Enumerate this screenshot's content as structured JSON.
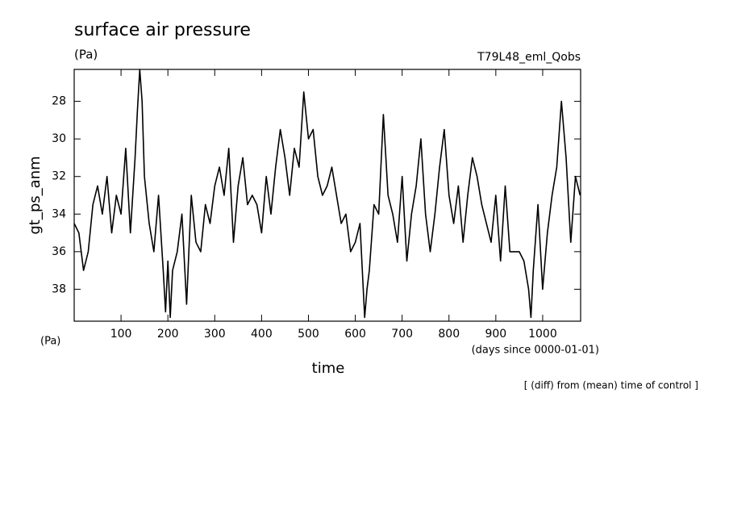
{
  "chart_data": {
    "type": "line",
    "title": "surface air pressure",
    "title_units": "(Pa)",
    "experiment": "T79L48_eml_Qobs",
    "ylabel": "gt_ps_anm",
    "y_units": "(Pa)",
    "xlabel": "time",
    "x_units": "(days since 0000-01-01)",
    "note": "[ (diff) from (mean) time of control ]",
    "color": "#000000",
    "x": [
      0,
      10,
      20,
      30,
      40,
      50,
      60,
      70,
      80,
      90,
      100,
      110,
      120,
      130,
      135,
      140,
      145,
      150,
      160,
      170,
      180,
      190,
      195,
      200,
      205,
      210,
      220,
      230,
      240,
      250,
      260,
      270,
      280,
      290,
      300,
      310,
      320,
      330,
      340,
      350,
      360,
      370,
      380,
      390,
      400,
      410,
      420,
      430,
      440,
      450,
      460,
      470,
      480,
      490,
      500,
      510,
      520,
      530,
      540,
      550,
      560,
      570,
      580,
      590,
      600,
      610,
      620,
      625,
      630,
      640,
      650,
      660,
      670,
      680,
      690,
      700,
      710,
      720,
      730,
      740,
      750,
      760,
      770,
      780,
      790,
      800,
      810,
      820,
      830,
      840,
      850,
      860,
      870,
      880,
      890,
      900,
      910,
      920,
      930,
      940,
      950,
      960,
      970,
      975,
      980,
      990,
      1000,
      1010,
      1020,
      1030,
      1040,
      1050,
      1060,
      1070,
      1080
    ],
    "values": [
      34.5,
      35,
      37,
      36,
      33.5,
      32.5,
      34,
      32,
      35,
      33,
      34,
      30.5,
      35,
      31,
      28.5,
      26.3,
      28,
      32,
      34.5,
      36,
      33,
      37,
      39.2,
      36.5,
      39.5,
      37,
      36,
      34,
      38.8,
      33,
      35.5,
      36,
      33.5,
      34.5,
      32.5,
      31.5,
      33,
      30.5,
      35.5,
      32.5,
      31,
      33.5,
      33,
      33.5,
      35,
      32,
      34,
      31.5,
      29.5,
      31,
      33,
      30.5,
      31.5,
      27.5,
      30,
      29.5,
      32,
      33,
      32.5,
      31.5,
      33,
      34.5,
      34,
      36,
      35.5,
      34.5,
      39.5,
      38,
      37,
      33.5,
      34,
      28.7,
      33,
      34,
      35.5,
      32,
      36.5,
      34,
      32.5,
      30,
      34,
      36,
      34,
      31.5,
      29.5,
      33,
      34.5,
      32.5,
      35.5,
      33,
      31,
      32,
      33.5,
      34.5,
      35.5,
      33,
      36.5,
      32.5,
      36,
      36,
      36,
      36.5,
      38,
      39.5,
      37,
      33.5,
      38,
      35,
      33,
      31.5,
      28,
      31,
      35.5,
      32,
      33
    ],
    "xlim": [
      0,
      1081
    ],
    "ylim": [
      39.7,
      26.3
    ],
    "xticks": [
      100,
      200,
      300,
      400,
      500,
      600,
      700,
      800,
      900,
      1000
    ],
    "yticks": [
      28,
      30,
      32,
      34,
      36,
      38
    ]
  }
}
